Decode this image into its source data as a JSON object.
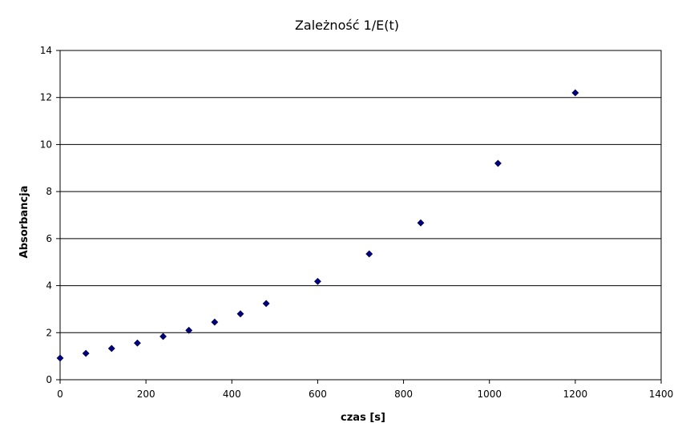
{
  "chart_data": {
    "type": "scatter",
    "title": "Zależność 1/E(t)",
    "xlabel": "czas [s]",
    "ylabel": "Absorbancja",
    "xlim": [
      0,
      1400
    ],
    "ylim": [
      0,
      14
    ],
    "x_ticks": [
      0,
      200,
      400,
      600,
      800,
      1000,
      1200,
      1400
    ],
    "y_ticks": [
      0,
      2,
      4,
      6,
      8,
      10,
      12,
      14
    ],
    "grid": "horizontal",
    "marker": "diamond",
    "colors": {
      "marker": "#000080",
      "grid": "#000000",
      "axis": "#000000"
    },
    "series": [
      {
        "points": [
          {
            "x": 0,
            "y": 0.92
          },
          {
            "x": 60,
            "y": 1.12
          },
          {
            "x": 120,
            "y": 1.33
          },
          {
            "x": 180,
            "y": 1.56
          },
          {
            "x": 240,
            "y": 1.84
          },
          {
            "x": 300,
            "y": 2.1
          },
          {
            "x": 360,
            "y": 2.45
          },
          {
            "x": 420,
            "y": 2.8
          },
          {
            "x": 480,
            "y": 3.24
          },
          {
            "x": 600,
            "y": 4.18
          },
          {
            "x": 720,
            "y": 5.35
          },
          {
            "x": 840,
            "y": 6.67
          },
          {
            "x": 1020,
            "y": 9.2
          },
          {
            "x": 1200,
            "y": 12.2
          }
        ]
      }
    ]
  }
}
